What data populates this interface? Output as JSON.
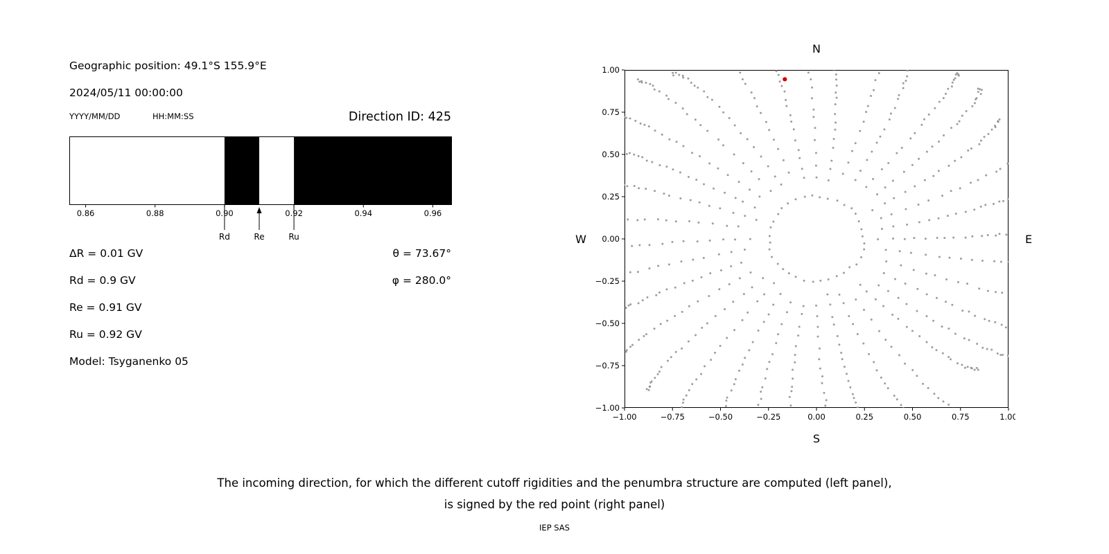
{
  "left_panel": {
    "geo_position": "Geographic position: 49.1°S 155.9°E",
    "datetime": "2024/05/11 00:00:00",
    "date_format": "YYYY/MM/DD",
    "time_format": "HH:MM:SS",
    "direction_id": "Direction ID: 425",
    "delta_r": "ΔR = 0.01 GV",
    "theta": "θ = 73.67°",
    "phi": "φ = 280.0°",
    "rd": "Rd = 0.9 GV",
    "re": "Re = 0.91 GV",
    "ru": "Ru = 0.92 GV",
    "model": "Model: Tsyganenko 05"
  },
  "right_panel": {
    "compass": {
      "top": "N",
      "bottom": "S",
      "left": "W",
      "right": "E"
    }
  },
  "caption": {
    "line1": "The incoming direction, for which the different cutoff rigidities and the penumbra structure are computed (left panel),",
    "line2": "is signed by the red point (right panel)",
    "credit": "IEP SAS"
  },
  "chart_data": [
    {
      "type": "bar",
      "name": "penumbra-structure",
      "title": "",
      "xlabel": "",
      "ylabel": "",
      "xlim": [
        0.8554,
        0.9654
      ],
      "xtick_values": [
        0.86,
        0.88,
        0.9,
        0.92,
        0.94,
        0.96
      ],
      "xtick_labels": [
        "0.86",
        "0.88",
        "0.90",
        "0.92",
        "0.94",
        "0.96"
      ],
      "allowed_color": "#ffffff",
      "band_color": "#000000",
      "forbidden_bands": [
        [
          0.9,
          0.91
        ],
        [
          0.92,
          0.9654
        ]
      ],
      "markers": [
        {
          "label": "Rd",
          "x": 0.9,
          "style": "line"
        },
        {
          "label": "Re",
          "x": 0.91,
          "style": "arrow"
        },
        {
          "label": "Ru",
          "x": 0.92,
          "style": "line"
        }
      ],
      "cutoffs_gv": {
        "delta_r": 0.01,
        "rd": 0.9,
        "re": 0.91,
        "ru": 0.92
      }
    },
    {
      "type": "scatter",
      "name": "asymptotic-directions",
      "title": "",
      "xlabel": "S",
      "ylabel": "",
      "xlim": [
        -1,
        1
      ],
      "ylim": [
        -1,
        1
      ],
      "grid": false,
      "xtick_values": [
        -1,
        -0.75,
        -0.5,
        -0.25,
        0,
        0.25,
        0.5,
        0.75,
        1
      ],
      "xtick_labels": [
        "−1.00",
        "−0.75",
        "−0.50",
        "−0.25",
        "0.00",
        "0.25",
        "0.50",
        "0.75",
        "1.00"
      ],
      "ytick_values": [
        1,
        0.75,
        0.5,
        0.25,
        0,
        -0.25,
        -0.5,
        -0.75,
        -1
      ],
      "ytick_labels": [
        "1.00",
        "0.75",
        "0.50",
        "0.25",
        "0.00",
        "−0.25",
        "−0.50",
        "−0.75",
        "−1.00"
      ],
      "direction_theta_deg": 73.67,
      "direction_phi_deg": 280.0,
      "red_point": {
        "x": -0.165,
        "y": 0.945,
        "color": "#d40000",
        "radius_px": 3.1
      },
      "pattern": {
        "description": "radial spokes of gray dots with dense outer tips and an inner dotted ring",
        "spokes": 36,
        "dots_per_spoke": 24,
        "spoke_start_radius": 0.33,
        "spoke_end_radius": 1.22,
        "tip_compression": 1.9,
        "angular_drift_rad": 0.09,
        "ring_radius": 0.25,
        "ring_dots": 36,
        "dot_color": "#909090",
        "dot_opacity": 0.88,
        "dot_radius_px": 1.5
      }
    }
  ]
}
